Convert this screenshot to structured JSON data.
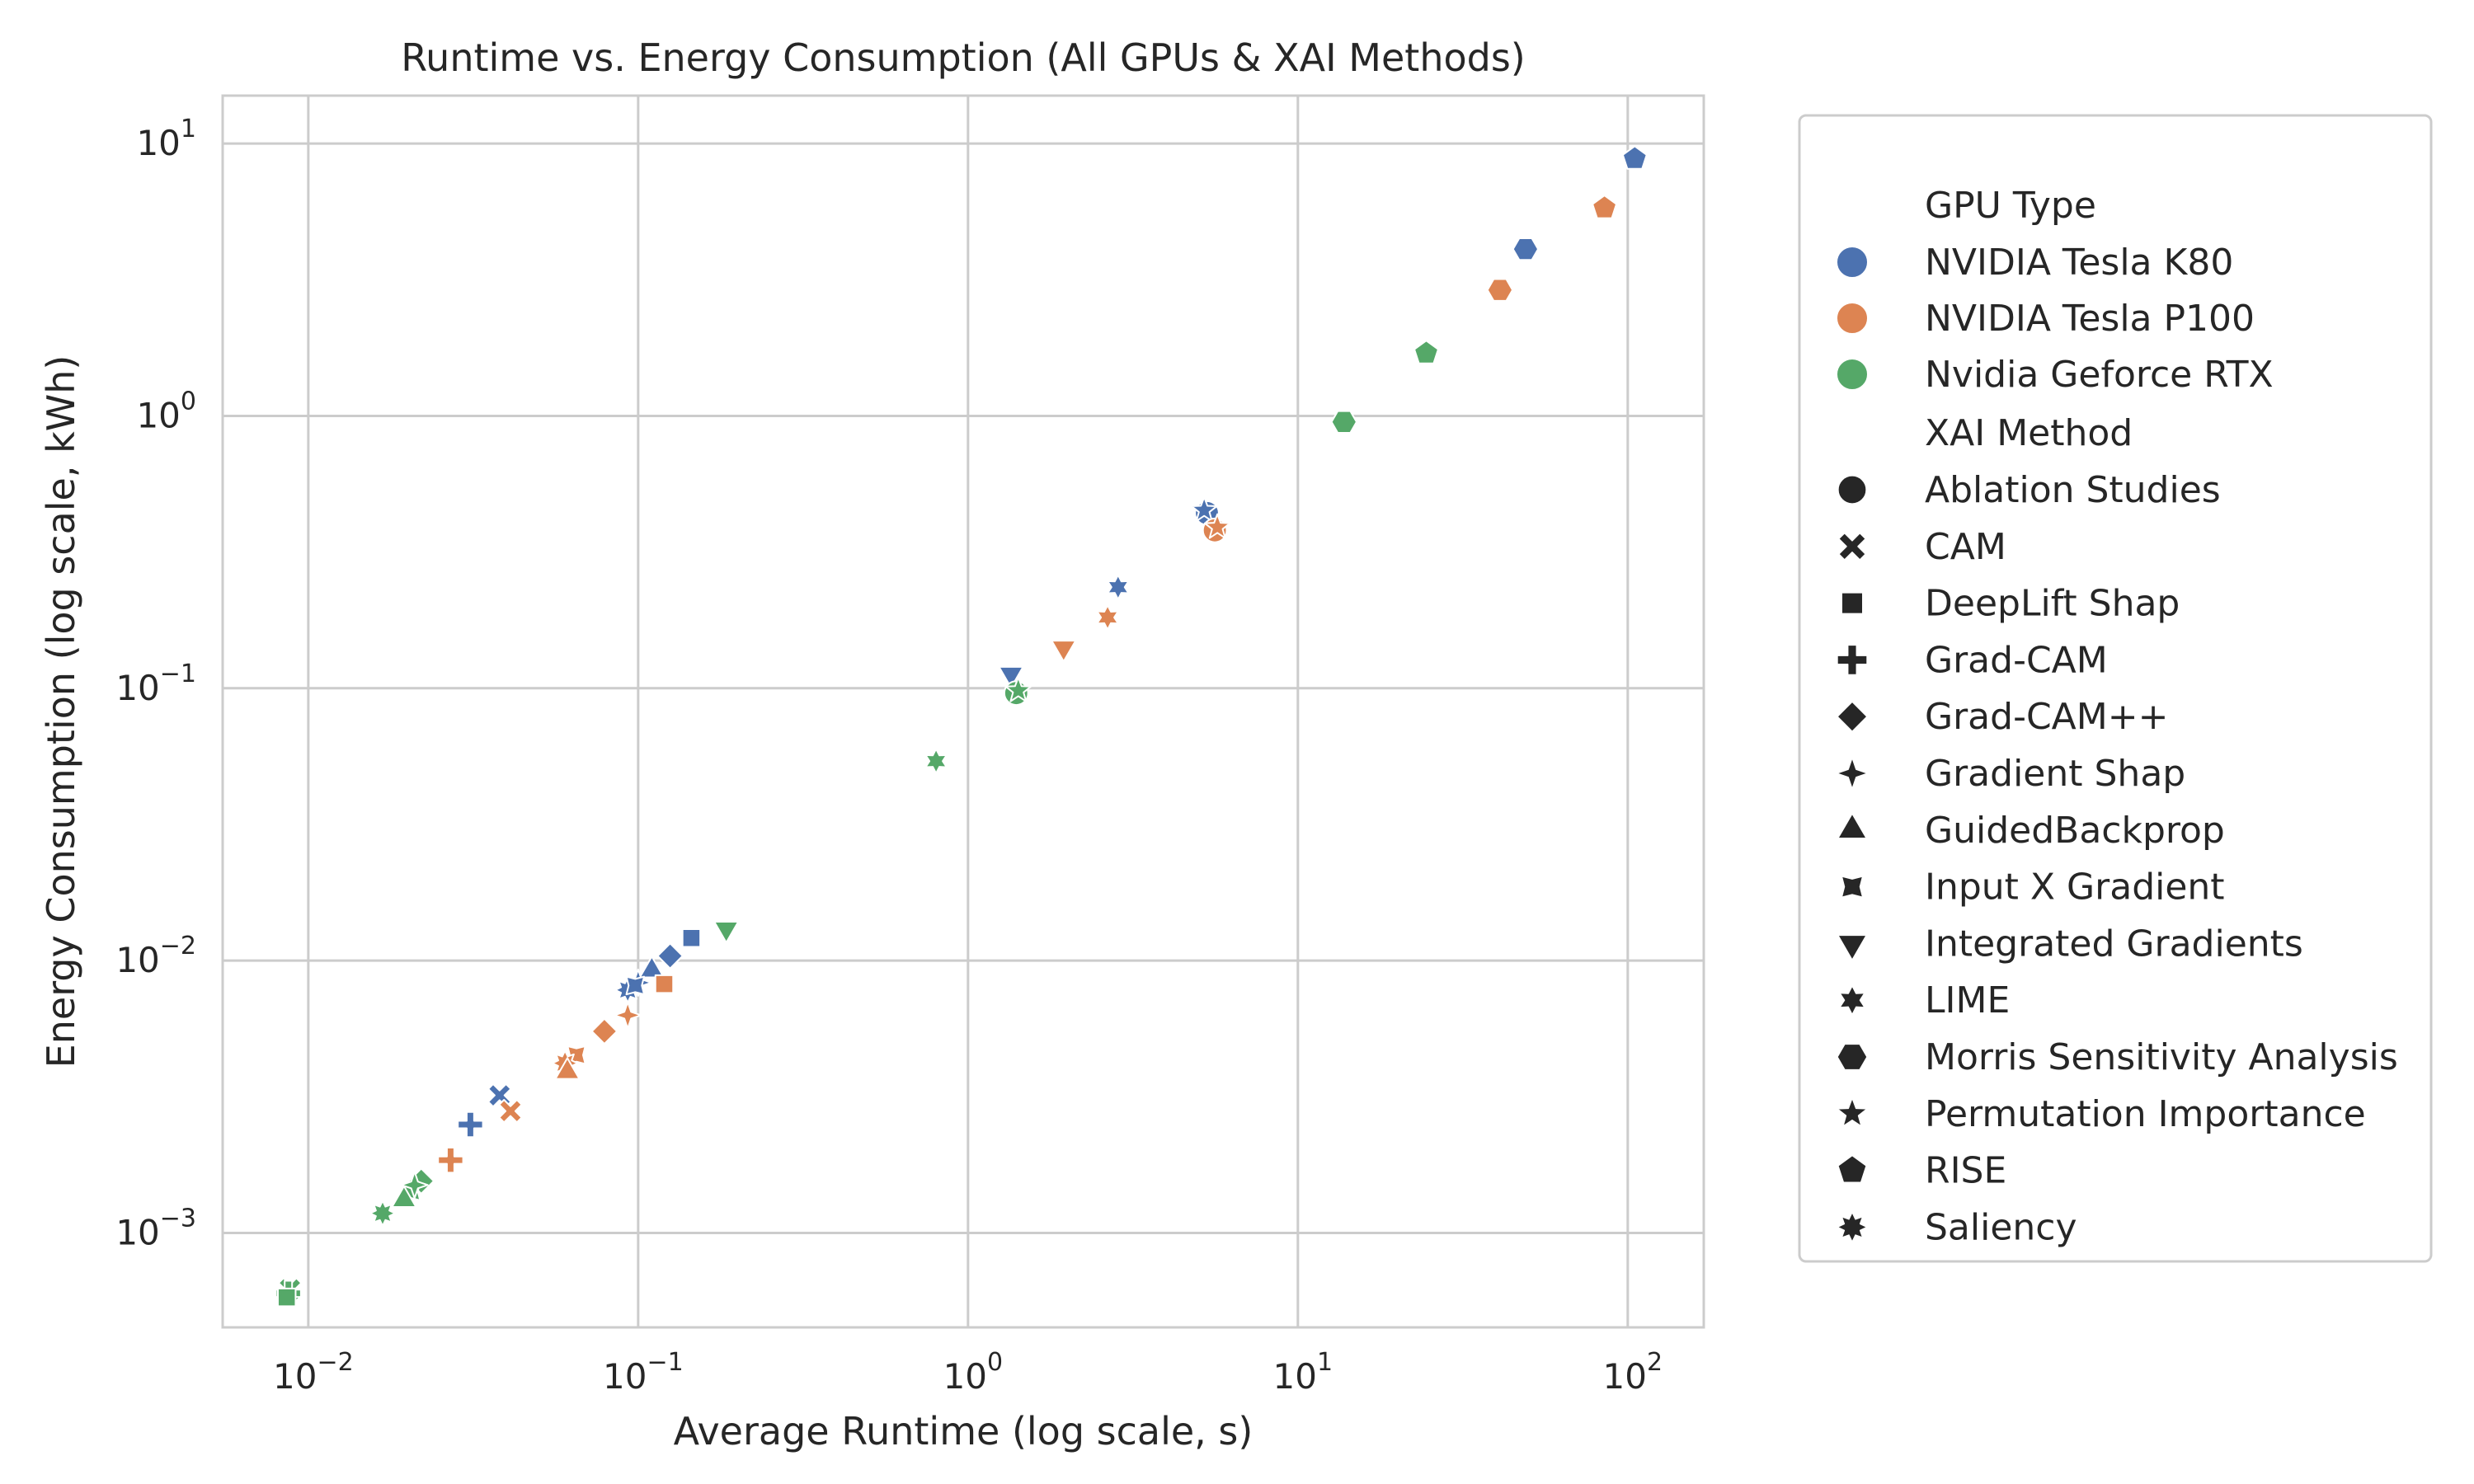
{
  "chart_data": {
    "type": "scatter",
    "title": "Runtime vs. Energy Consumption (All GPUs & XAI Methods)",
    "xlabel": "Average Runtime (log scale, s)",
    "ylabel": "Energy Consumption (log scale, kWh)",
    "xscale": "log",
    "yscale": "log",
    "xlim": [
      0.0055,
      170
    ],
    "ylim": [
      0.00045,
      15
    ],
    "x_ticks": [
      {
        "value": 0.01,
        "base": "10",
        "exp": "−2"
      },
      {
        "value": 0.1,
        "base": "10",
        "exp": "−1"
      },
      {
        "value": 1,
        "base": "10",
        "exp": "0"
      },
      {
        "value": 10,
        "base": "10",
        "exp": "1"
      },
      {
        "value": 100,
        "base": "10",
        "exp": "2"
      }
    ],
    "y_ticks": [
      {
        "value": 0.001,
        "base": "10",
        "exp": "−3"
      },
      {
        "value": 0.01,
        "base": "10",
        "exp": "−2"
      },
      {
        "value": 0.1,
        "base": "10",
        "exp": "−1"
      },
      {
        "value": 1,
        "base": "10",
        "exp": "0"
      },
      {
        "value": 10,
        "base": "10",
        "exp": "1"
      }
    ],
    "grid": true,
    "legend_position": "outside-right",
    "legend": {
      "hue_title": "GPU Type",
      "gpus": [
        {
          "name": "NVIDIA Tesla K80",
          "color": "#4c72b0"
        },
        {
          "name": "NVIDIA Tesla P100",
          "color": "#dd8452"
        },
        {
          "name": "Nvidia Geforce RTX",
          "color": "#55a868"
        }
      ],
      "style_title": "XAI Method",
      "methods": [
        {
          "name": "Ablation Studies",
          "marker": "circle"
        },
        {
          "name": "CAM",
          "marker": "x"
        },
        {
          "name": "DeepLift Shap",
          "marker": "square"
        },
        {
          "name": "Grad-CAM",
          "marker": "plus"
        },
        {
          "name": "Grad-CAM++",
          "marker": "diamond"
        },
        {
          "name": "Gradient Shap",
          "marker": "star4"
        },
        {
          "name": "GuidedBackprop",
          "marker": "triangle-up"
        },
        {
          "name": "Input X Gradient",
          "marker": "star4-concave"
        },
        {
          "name": "Integrated Gradients",
          "marker": "triangle-down"
        },
        {
          "name": "LIME",
          "marker": "star6"
        },
        {
          "name": "Morris Sensitivity Analysis",
          "marker": "hexagon"
        },
        {
          "name": "Permutation Importance",
          "marker": "star5"
        },
        {
          "name": "RISE",
          "marker": "pentagon"
        },
        {
          "name": "Saliency",
          "marker": "star8"
        }
      ]
    },
    "points": [
      {
        "gpu": 0,
        "method": "RISE",
        "x": 105,
        "y": 8.8
      },
      {
        "gpu": 0,
        "method": "Morris Sensitivity Analysis",
        "x": 49,
        "y": 4.1
      },
      {
        "gpu": 0,
        "method": "Ablation Studies",
        "x": 5.3,
        "y": 0.44
      },
      {
        "gpu": 0,
        "method": "Permutation Importance",
        "x": 5.2,
        "y": 0.45
      },
      {
        "gpu": 0,
        "method": "LIME",
        "x": 2.85,
        "y": 0.235
      },
      {
        "gpu": 0,
        "method": "Integrated Gradients",
        "x": 1.35,
        "y": 0.113
      },
      {
        "gpu": 0,
        "method": "DeepLift Shap",
        "x": 0.145,
        "y": 0.0121
      },
      {
        "gpu": 0,
        "method": "Grad-CAM++",
        "x": 0.125,
        "y": 0.0104
      },
      {
        "gpu": 0,
        "method": "GuidedBackprop",
        "x": 0.11,
        "y": 0.0092
      },
      {
        "gpu": 0,
        "method": "Gradient Shap",
        "x": 0.1,
        "y": 0.0083
      },
      {
        "gpu": 0,
        "method": "Saliency",
        "x": 0.093,
        "y": 0.0078
      },
      {
        "gpu": 0,
        "method": "Input X Gradient",
        "x": 0.098,
        "y": 0.0081
      },
      {
        "gpu": 0,
        "method": "CAM",
        "x": 0.038,
        "y": 0.0032
      },
      {
        "gpu": 0,
        "method": "Grad-CAM",
        "x": 0.031,
        "y": 0.0025
      },
      {
        "gpu": 1,
        "method": "RISE",
        "x": 85,
        "y": 5.8
      },
      {
        "gpu": 1,
        "method": "Morris Sensitivity Analysis",
        "x": 41,
        "y": 2.9
      },
      {
        "gpu": 1,
        "method": "Ablation Studies",
        "x": 5.6,
        "y": 0.38
      },
      {
        "gpu": 1,
        "method": "Permutation Importance",
        "x": 5.7,
        "y": 0.39
      },
      {
        "gpu": 1,
        "method": "LIME",
        "x": 2.65,
        "y": 0.182
      },
      {
        "gpu": 1,
        "method": "Integrated Gradients",
        "x": 1.95,
        "y": 0.141
      },
      {
        "gpu": 1,
        "method": "DeepLift Shap",
        "x": 0.12,
        "y": 0.0082
      },
      {
        "gpu": 1,
        "method": "Gradient Shap",
        "x": 0.093,
        "y": 0.0063
      },
      {
        "gpu": 1,
        "method": "Grad-CAM++",
        "x": 0.079,
        "y": 0.0055
      },
      {
        "gpu": 1,
        "method": "Input X Gradient",
        "x": 0.065,
        "y": 0.0045
      },
      {
        "gpu": 1,
        "method": "Saliency",
        "x": 0.06,
        "y": 0.0042
      },
      {
        "gpu": 1,
        "method": "GuidedBackprop",
        "x": 0.061,
        "y": 0.0039
      },
      {
        "gpu": 1,
        "method": "CAM",
        "x": 0.041,
        "y": 0.0028
      },
      {
        "gpu": 1,
        "method": "Grad-CAM",
        "x": 0.027,
        "y": 0.00185
      },
      {
        "gpu": 2,
        "method": "RISE",
        "x": 24.5,
        "y": 1.7
      },
      {
        "gpu": 2,
        "method": "Morris Sensitivity Analysis",
        "x": 13.8,
        "y": 0.95
      },
      {
        "gpu": 2,
        "method": "Ablation Studies",
        "x": 1.4,
        "y": 0.096
      },
      {
        "gpu": 2,
        "method": "Permutation Importance",
        "x": 1.42,
        "y": 0.098
      },
      {
        "gpu": 2,
        "method": "LIME",
        "x": 0.8,
        "y": 0.054
      },
      {
        "gpu": 2,
        "method": "Integrated Gradients",
        "x": 0.185,
        "y": 0.0131
      },
      {
        "gpu": 2,
        "method": "Grad-CAM++",
        "x": 0.022,
        "y": 0.00155
      },
      {
        "gpu": 2,
        "method": "Input X Gradient",
        "x": 0.0205,
        "y": 0.00142
      },
      {
        "gpu": 2,
        "method": "GuidedBackprop",
        "x": 0.0195,
        "y": 0.00132
      },
      {
        "gpu": 2,
        "method": "Gradient Shap",
        "x": 0.021,
        "y": 0.0015
      },
      {
        "gpu": 2,
        "method": "Saliency",
        "x": 0.0168,
        "y": 0.00118
      },
      {
        "gpu": 2,
        "method": "CAM",
        "x": 0.0088,
        "y": 0.00062
      },
      {
        "gpu": 2,
        "method": "Grad-CAM",
        "x": 0.0087,
        "y": 0.0006
      },
      {
        "gpu": 2,
        "method": "DeepLift Shap",
        "x": 0.0086,
        "y": 0.00058
      }
    ]
  }
}
